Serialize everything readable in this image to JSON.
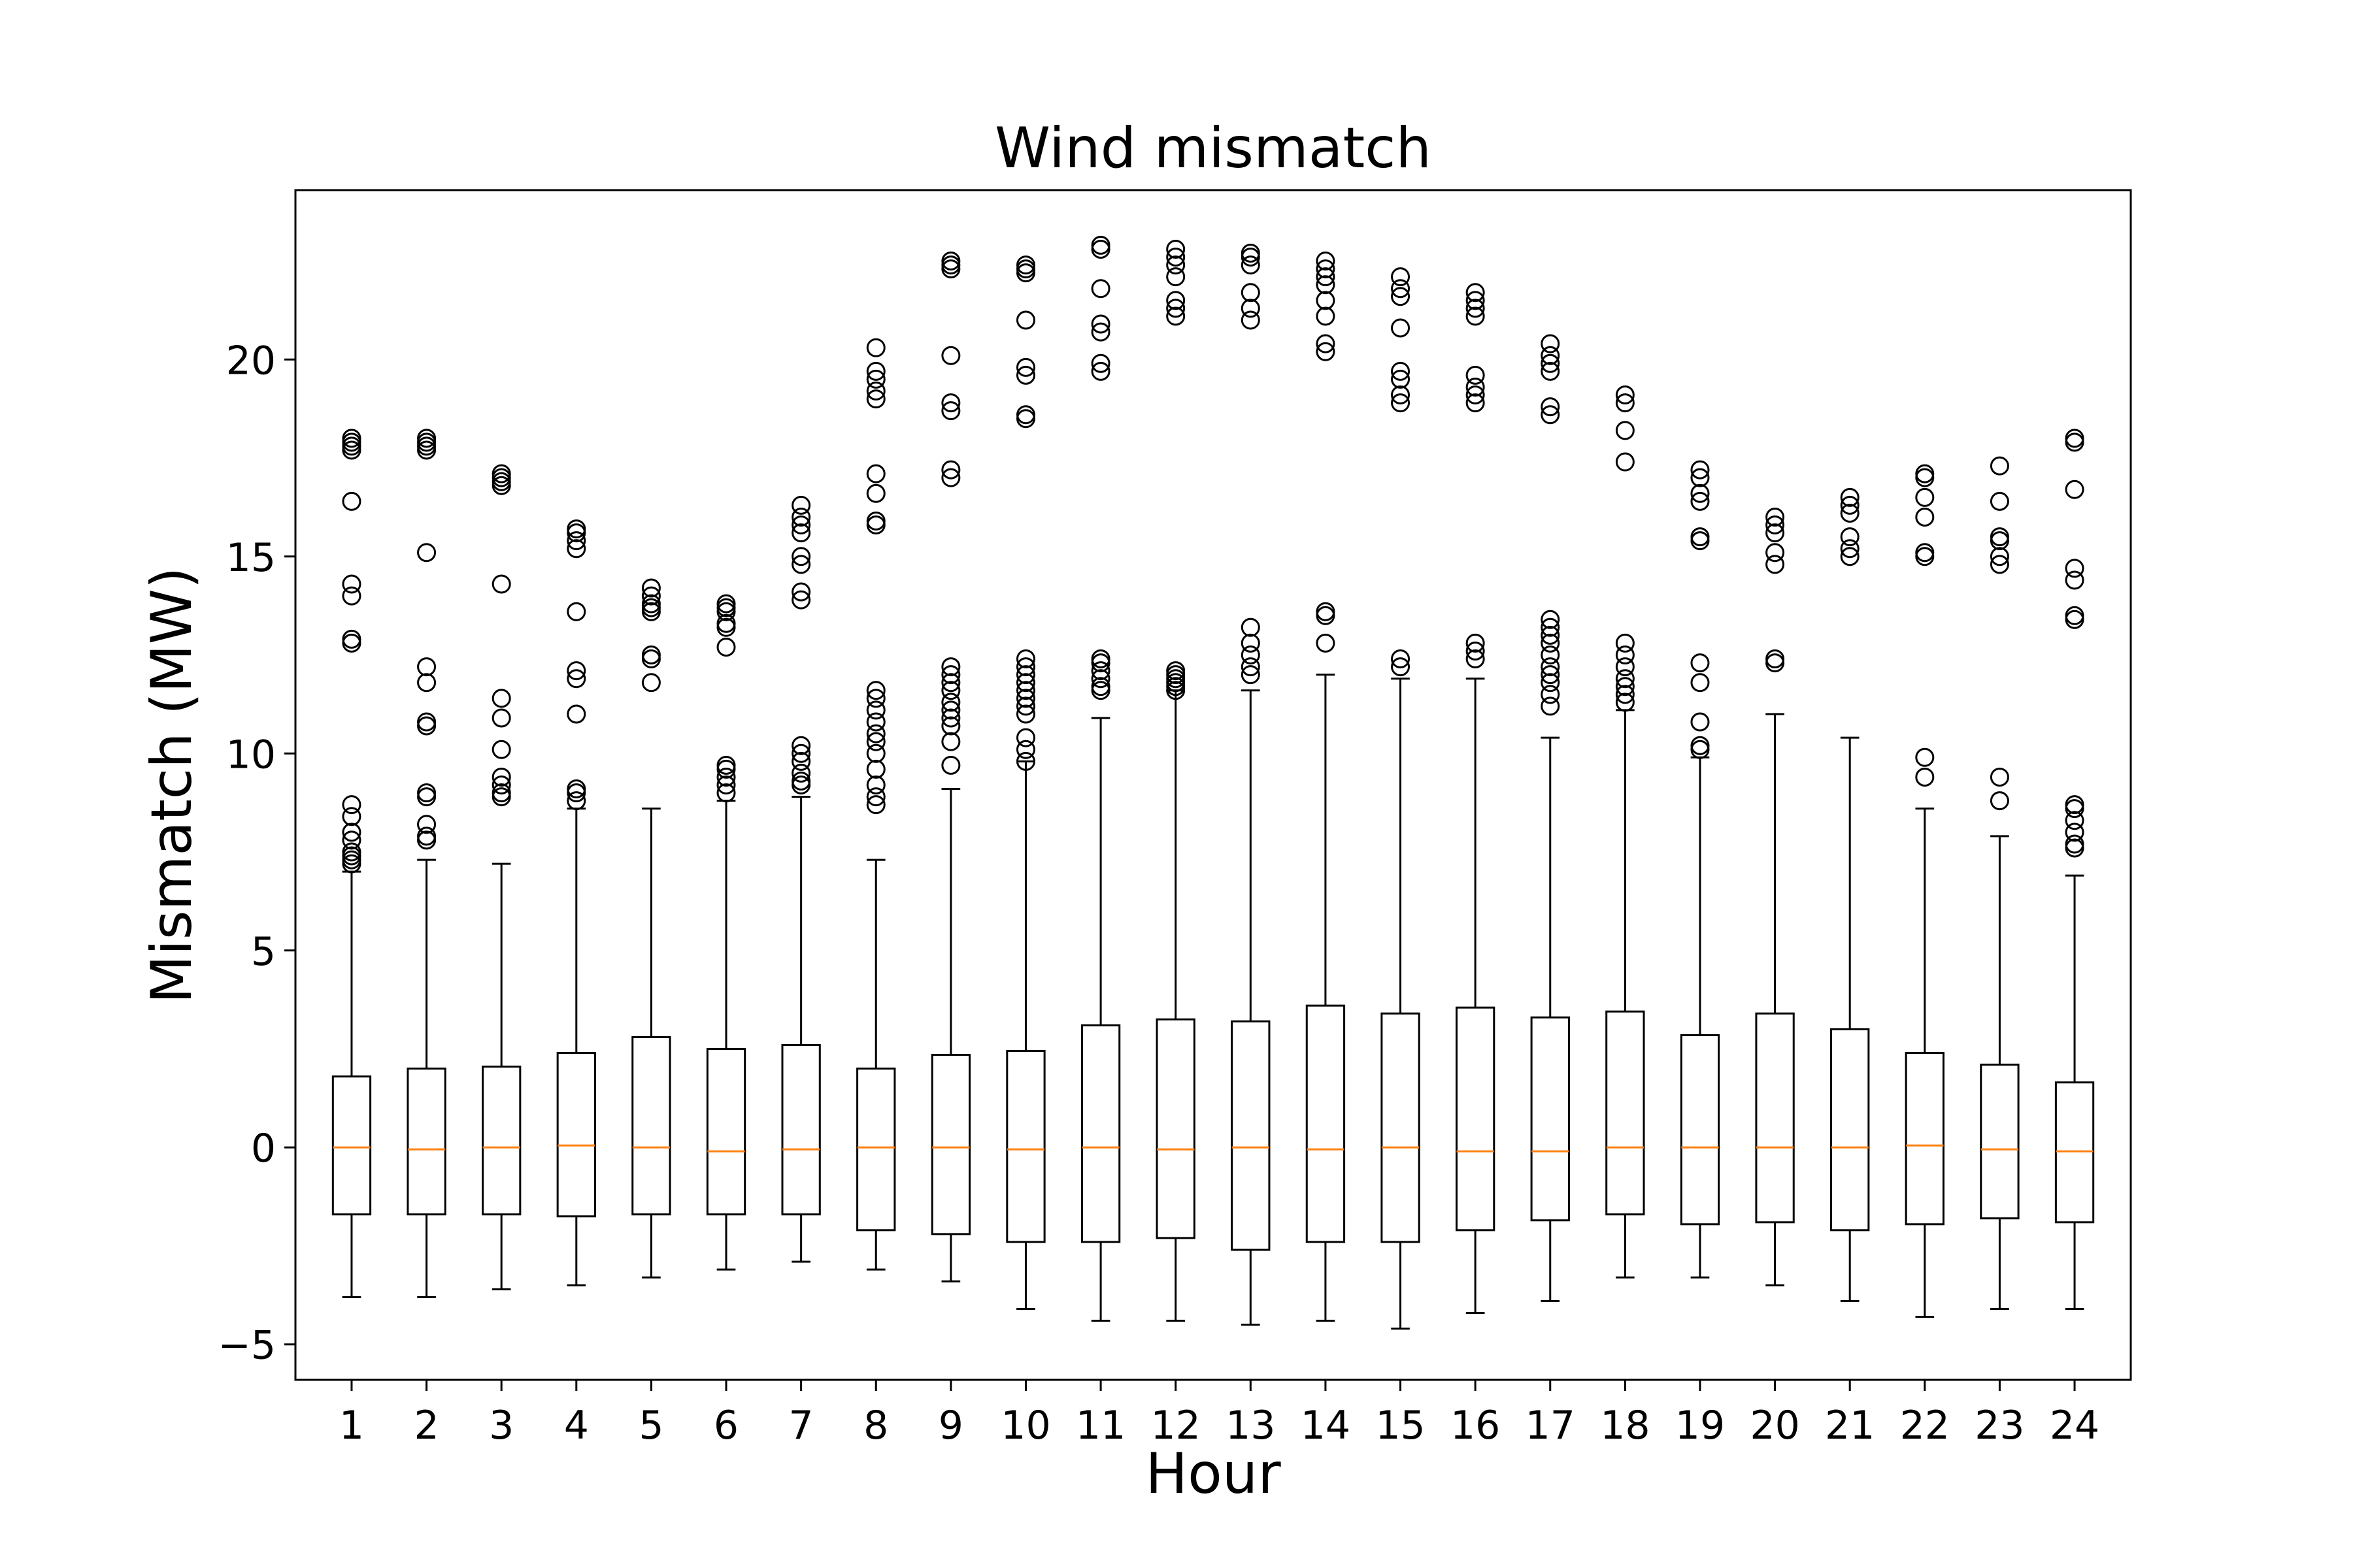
{
  "chart_data": {
    "type": "boxplot",
    "title": "Wind mismatch",
    "xlabel": "Hour",
    "ylabel": "Mismatch (MW)",
    "ylim": [
      -5.9,
      24.3
    ],
    "yticks": [
      -5,
      0,
      5,
      10,
      15,
      20
    ],
    "ytick_labels": [
      "−5",
      "0",
      "5",
      "10",
      "15",
      "20"
    ],
    "categories": [
      "1",
      "2",
      "3",
      "4",
      "5",
      "6",
      "7",
      "8",
      "9",
      "10",
      "11",
      "12",
      "13",
      "14",
      "15",
      "16",
      "17",
      "18",
      "19",
      "20",
      "21",
      "22",
      "23",
      "24"
    ],
    "grid": false,
    "colors": {
      "box": "#000000",
      "median": "#ff7f0e",
      "flier": "#000000"
    },
    "boxes": [
      {
        "hour": "1",
        "whislo": -3.8,
        "q1": -1.7,
        "med": 0.0,
        "q3": 1.8,
        "whishi": 7.0,
        "fliers": [
          7.2,
          7.3,
          7.4,
          7.5,
          7.8,
          8.0,
          8.4,
          8.7,
          12.8,
          12.9,
          14.0,
          14.3,
          16.4,
          17.7,
          17.8,
          17.9,
          18.0
        ]
      },
      {
        "hour": "2",
        "whislo": -3.8,
        "q1": -1.7,
        "med": -0.05,
        "q3": 2.0,
        "whishi": 7.3,
        "fliers": [
          7.8,
          7.9,
          8.2,
          8.9,
          9.0,
          10.7,
          10.8,
          11.8,
          12.2,
          15.1,
          17.7,
          17.8,
          17.9,
          18.0
        ]
      },
      {
        "hour": "3",
        "whislo": -3.6,
        "q1": -1.7,
        "med": 0.0,
        "q3": 2.05,
        "whishi": 7.2,
        "fliers": [
          8.9,
          9.0,
          9.2,
          9.4,
          10.1,
          10.9,
          11.4,
          14.3,
          16.8,
          16.9,
          17.0,
          17.1
        ]
      },
      {
        "hour": "4",
        "whislo": -3.5,
        "q1": -1.75,
        "med": 0.05,
        "q3": 2.4,
        "whishi": 8.6,
        "fliers": [
          8.8,
          9.0,
          9.1,
          11.0,
          11.9,
          12.1,
          13.6,
          15.2,
          15.4,
          15.6,
          15.7
        ]
      },
      {
        "hour": "5",
        "whislo": -3.3,
        "q1": -1.7,
        "med": 0.0,
        "q3": 2.8,
        "whishi": 8.6,
        "fliers": [
          11.8,
          12.4,
          12.5,
          13.6,
          13.7,
          13.8,
          14.0,
          14.2
        ]
      },
      {
        "hour": "6",
        "whislo": -3.1,
        "q1": -1.7,
        "med": -0.1,
        "q3": 2.5,
        "whishi": 8.8,
        "fliers": [
          9.0,
          9.2,
          9.4,
          9.6,
          9.7,
          12.7,
          13.2,
          13.3,
          13.6,
          13.7,
          13.8
        ]
      },
      {
        "hour": "7",
        "whislo": -2.9,
        "q1": -1.7,
        "med": -0.05,
        "q3": 2.6,
        "whishi": 8.9,
        "fliers": [
          9.2,
          9.3,
          9.5,
          9.8,
          10.0,
          10.2,
          13.9,
          14.1,
          14.8,
          15.0,
          15.6,
          15.8,
          16.0,
          16.3
        ]
      },
      {
        "hour": "8",
        "whislo": -3.1,
        "q1": -2.1,
        "med": 0.0,
        "q3": 2.0,
        "whishi": 7.3,
        "fliers": [
          8.7,
          8.9,
          9.2,
          9.6,
          10.0,
          10.3,
          10.5,
          10.8,
          11.1,
          11.4,
          11.6,
          15.8,
          15.9,
          16.6,
          17.1,
          19.0,
          19.2,
          19.5,
          19.7,
          20.3
        ]
      },
      {
        "hour": "9",
        "whislo": -3.4,
        "q1": -2.2,
        "med": 0.0,
        "q3": 2.35,
        "whishi": 9.1,
        "fliers": [
          9.7,
          10.3,
          10.7,
          10.9,
          11.1,
          11.3,
          11.6,
          11.8,
          12.0,
          12.2,
          17.0,
          17.2,
          18.7,
          18.9,
          20.1,
          22.3,
          22.4,
          22.5
        ]
      },
      {
        "hour": "10",
        "whislo": -4.1,
        "q1": -2.4,
        "med": -0.05,
        "q3": 2.45,
        "whishi": 9.8,
        "fliers": [
          9.8,
          10.1,
          10.4,
          11.0,
          11.2,
          11.4,
          11.6,
          11.8,
          12.0,
          12.2,
          12.4,
          18.5,
          18.6,
          19.6,
          19.8,
          21.0,
          22.2,
          22.3,
          22.4
        ]
      },
      {
        "hour": "11",
        "whislo": -4.4,
        "q1": -2.4,
        "med": 0.0,
        "q3": 3.1,
        "whishi": 10.9,
        "fliers": [
          11.6,
          11.7,
          11.9,
          12.1,
          12.3,
          12.4,
          19.7,
          19.9,
          20.7,
          20.9,
          21.8,
          22.8,
          22.9
        ]
      },
      {
        "hour": "12",
        "whislo": -4.4,
        "q1": -2.3,
        "med": -0.05,
        "q3": 3.25,
        "whishi": 11.6,
        "fliers": [
          11.6,
          11.7,
          11.8,
          11.9,
          12.0,
          12.1,
          21.1,
          21.3,
          21.5,
          22.1,
          22.4,
          22.6,
          22.8
        ]
      },
      {
        "hour": "13",
        "whislo": -4.5,
        "q1": -2.6,
        "med": 0.0,
        "q3": 3.2,
        "whishi": 11.6,
        "fliers": [
          12.0,
          12.2,
          12.5,
          12.8,
          13.2,
          21.0,
          21.3,
          21.7,
          22.4,
          22.6,
          22.7
        ]
      },
      {
        "hour": "14",
        "whislo": -4.4,
        "q1": -2.4,
        "med": -0.05,
        "q3": 3.6,
        "whishi": 12.0,
        "fliers": [
          12.8,
          13.5,
          13.6,
          20.2,
          20.4,
          21.1,
          21.5,
          21.9,
          22.1,
          22.3,
          22.5
        ]
      },
      {
        "hour": "15",
        "whislo": -4.6,
        "q1": -2.4,
        "med": 0.0,
        "q3": 3.4,
        "whishi": 11.9,
        "fliers": [
          12.2,
          12.4,
          18.9,
          19.1,
          19.5,
          19.7,
          20.8,
          21.6,
          21.8,
          22.1
        ]
      },
      {
        "hour": "16",
        "whislo": -4.2,
        "q1": -2.1,
        "med": -0.1,
        "q3": 3.55,
        "whishi": 11.9,
        "fliers": [
          12.4,
          12.6,
          12.8,
          18.9,
          19.1,
          19.3,
          19.6,
          21.1,
          21.3,
          21.5,
          21.7
        ]
      },
      {
        "hour": "17",
        "whislo": -3.9,
        "q1": -1.85,
        "med": -0.1,
        "q3": 3.3,
        "whishi": 10.4,
        "fliers": [
          11.2,
          11.5,
          11.8,
          12.0,
          12.2,
          12.5,
          12.8,
          13.0,
          13.2,
          13.4,
          18.6,
          18.8,
          19.7,
          19.9,
          20.1,
          20.4
        ]
      },
      {
        "hour": "18",
        "whislo": -3.3,
        "q1": -1.7,
        "med": 0.0,
        "q3": 3.45,
        "whishi": 11.1,
        "fliers": [
          11.3,
          11.5,
          11.7,
          11.9,
          12.2,
          12.5,
          12.8,
          17.4,
          18.2,
          18.9,
          19.1
        ]
      },
      {
        "hour": "19",
        "whislo": -3.3,
        "q1": -1.95,
        "med": 0.0,
        "q3": 2.85,
        "whishi": 9.9,
        "fliers": [
          10.1,
          10.2,
          10.8,
          11.8,
          12.3,
          15.4,
          15.5,
          16.4,
          16.6,
          17.0,
          17.2
        ]
      },
      {
        "hour": "20",
        "whislo": -3.5,
        "q1": -1.9,
        "med": 0.0,
        "q3": 3.4,
        "whishi": 11.0,
        "fliers": [
          12.3,
          12.4,
          14.8,
          15.1,
          15.6,
          15.8,
          16.0
        ]
      },
      {
        "hour": "21",
        "whislo": -3.9,
        "q1": -2.1,
        "med": 0.0,
        "q3": 3.0,
        "whishi": 10.4,
        "fliers": [
          15.0,
          15.2,
          15.5,
          16.1,
          16.3,
          16.5
        ]
      },
      {
        "hour": "22",
        "whislo": -4.3,
        "q1": -1.95,
        "med": 0.05,
        "q3": 2.4,
        "whishi": 8.6,
        "fliers": [
          9.4,
          9.9,
          15.0,
          15.1,
          16.0,
          16.5,
          17.0,
          17.1
        ]
      },
      {
        "hour": "23",
        "whislo": -4.1,
        "q1": -1.8,
        "med": -0.05,
        "q3": 2.1,
        "whishi": 7.9,
        "fliers": [
          8.8,
          9.4,
          14.8,
          15.0,
          15.4,
          15.5,
          16.4,
          17.3
        ]
      },
      {
        "hour": "24",
        "whislo": -4.1,
        "q1": -1.9,
        "med": -0.1,
        "q3": 1.65,
        "whishi": 6.9,
        "fliers": [
          7.6,
          7.7,
          8.0,
          8.3,
          8.6,
          8.7,
          13.4,
          13.5,
          14.4,
          14.7,
          16.7,
          17.9,
          18.0
        ]
      }
    ]
  }
}
